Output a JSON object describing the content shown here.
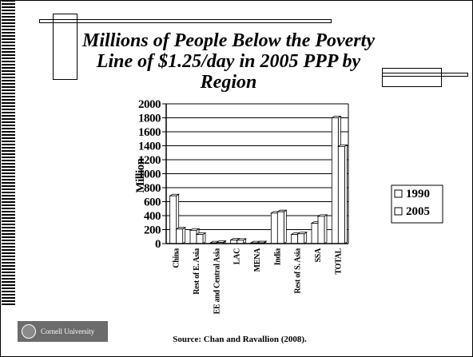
{
  "slide": {
    "title": "Millions of People Below the Poverty\nLine of $1.25/day in 2005 PPP by\nRegion",
    "source": "Source:  Chan and Ravallion (2008).",
    "logo_text": "Cornell University"
  },
  "chart_data": {
    "type": "bar",
    "title": "",
    "xlabel": "",
    "ylabel": "Million",
    "ylim": [
      0,
      2000
    ],
    "yticks": [
      "0",
      "200",
      "400",
      "600",
      "800",
      "1000",
      "1200",
      "1400",
      "1600",
      "1800",
      "2000"
    ],
    "grid": true,
    "legend_position": "right",
    "categories": [
      "China",
      "Rest of E. Asia",
      "EE and Central Asia",
      "LAC",
      "MENA",
      "India",
      "Rest of S. Asia",
      "SSA",
      "TOTAL"
    ],
    "series": [
      {
        "name": "1990",
        "color": "#ffffff",
        "values": [
          683,
          190,
          10,
          50,
          10,
          436,
          130,
          290,
          1800
        ]
      },
      {
        "name": "2005",
        "color": "#ffffff",
        "values": [
          208,
          130,
          17,
          47,
          11,
          455,
          140,
          390,
          1390
        ]
      }
    ]
  }
}
